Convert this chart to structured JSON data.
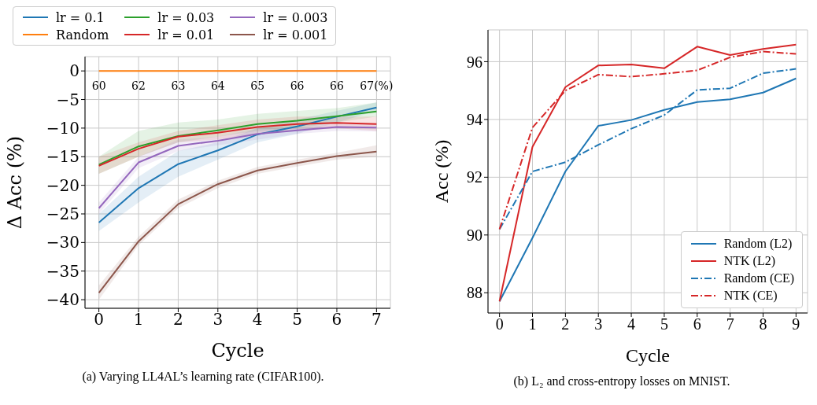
{
  "chart_data": [
    {
      "type": "line",
      "xlabel": "Cycle",
      "ylabel": "Δ Acc (%)",
      "x": [
        0,
        1,
        2,
        3,
        4,
        5,
        6,
        7
      ],
      "xlim": [
        -0.35,
        7.35
      ],
      "xticks": [
        0,
        1,
        2,
        3,
        4,
        5,
        6,
        7
      ],
      "ylim": [
        -41.5,
        2.5
      ],
      "yticks": [
        0,
        -5,
        -10,
        -15,
        -20,
        -25,
        -30,
        -35,
        -40
      ],
      "grid": true,
      "legend": "top",
      "line_style": "solid",
      "series": [
        {
          "name": "lr = 0.1",
          "color": "#1f77b4",
          "values": [
            -26.5,
            -20.5,
            -16.3,
            -13.9,
            -11.1,
            -9.7,
            -8.0,
            -6.4
          ],
          "lower": [
            -28,
            -23,
            -18.5,
            -15.5,
            -12.5,
            -11,
            -9,
            -7
          ],
          "upper": [
            -25,
            -18.5,
            -14,
            -12.5,
            -10,
            -8.5,
            -7,
            -5.5
          ]
        },
        {
          "name": "Random",
          "color": "#ff7f0e",
          "values": [
            0,
            0,
            0,
            0,
            0,
            0,
            0,
            0
          ]
        },
        {
          "name": "lr = 0.03",
          "color": "#2ca02c",
          "values": [
            -16.4,
            -13.2,
            -11.4,
            -10.4,
            -9.3,
            -8.7,
            -7.9,
            -7.1
          ],
          "lower": [
            -18,
            -15,
            -12.5,
            -11.5,
            -10.5,
            -10,
            -9,
            -8
          ],
          "upper": [
            -15,
            -10.5,
            -9,
            -8.5,
            -7.5,
            -7,
            -6.5,
            -5.5
          ]
        },
        {
          "name": "lr = 0.01",
          "color": "#d62728",
          "values": [
            -16.6,
            -13.6,
            -11.5,
            -10.8,
            -9.8,
            -9.3,
            -9.1,
            -9.3
          ],
          "lower": [
            -18,
            -15,
            -12.5,
            -12,
            -11,
            -10.5,
            -10,
            -10.5
          ],
          "upper": [
            -15,
            -12.5,
            -10.5,
            -9.5,
            -8.5,
            -8,
            -8,
            -8
          ]
        },
        {
          "name": "lr = 0.003",
          "color": "#9467bd",
          "values": [
            -24.0,
            -16.0,
            -13.1,
            -12.2,
            -11.0,
            -10.4,
            -9.8,
            -9.9
          ],
          "lower": [
            -25,
            -17,
            -14,
            -13,
            -12,
            -11,
            -10.5,
            -10.6
          ],
          "upper": [
            -23,
            -15,
            -12,
            -11.5,
            -10,
            -10,
            -9.3,
            -9.3
          ]
        },
        {
          "name": "lr = 0.001",
          "color": "#8c564b",
          "values": [
            -38.8,
            -29.8,
            -23.3,
            -19.8,
            -17.4,
            -16.1,
            -14.9,
            -14.1
          ],
          "lower": [
            -40,
            -30.5,
            -24,
            -20.5,
            -18,
            -16.7,
            -15.5,
            -15
          ],
          "upper": [
            -37.5,
            -29,
            -22.5,
            -19.2,
            -16.8,
            -15.5,
            -14.3,
            -13
          ]
        }
      ],
      "annotations": [
        {
          "text": "60",
          "x": 0,
          "y": 0
        },
        {
          "text": "62",
          "x": 1,
          "y": 0
        },
        {
          "text": "63",
          "x": 2,
          "y": 0
        },
        {
          "text": "64",
          "x": 3,
          "y": 0
        },
        {
          "text": "65",
          "x": 4,
          "y": 0
        },
        {
          "text": "66",
          "x": 5,
          "y": 0
        },
        {
          "text": "66",
          "x": 6,
          "y": 0
        },
        {
          "text": "67(%)",
          "x": 7,
          "y": 0
        },
        "(a) Varying LL4AL’s learning rate (CIFAR100)."
      ]
    },
    {
      "type": "line",
      "xlabel": "Cycle",
      "ylabel": "Acc (%)",
      "x": [
        0,
        1,
        2,
        3,
        4,
        5,
        6,
        7,
        8,
        9
      ],
      "xlim": [
        -0.35,
        9.35
      ],
      "xticks": [
        0,
        1,
        2,
        3,
        4,
        5,
        6,
        7,
        8,
        9
      ],
      "ylim": [
        87.3,
        97.1
      ],
      "yticks": [
        88,
        90,
        92,
        94,
        96
      ],
      "grid": true,
      "legend": "bottom right",
      "series": [
        {
          "name": "Random (L2)",
          "color": "#1f77b4",
          "line_style": "solid",
          "values": [
            87.7,
            89.9,
            92.2,
            93.78,
            93.98,
            94.33,
            94.6,
            94.7,
            94.93,
            95.42
          ]
        },
        {
          "name": "NTK (L2)",
          "color": "#d62728",
          "line_style": "solid",
          "values": [
            87.7,
            93.05,
            95.12,
            95.87,
            95.9,
            95.77,
            96.52,
            96.23,
            96.44,
            96.59
          ]
        },
        {
          "name": "Random (CE)",
          "color": "#1f77b4",
          "line_style": "dashdot",
          "values": [
            90.2,
            92.2,
            92.52,
            93.12,
            93.68,
            94.15,
            95.02,
            95.08,
            95.6,
            95.75
          ]
        },
        {
          "name": "NTK (CE)",
          "color": "#d62728",
          "line_style": "dashdot",
          "values": [
            90.2,
            93.72,
            95.0,
            95.55,
            95.48,
            95.58,
            95.7,
            96.15,
            96.35,
            96.27
          ]
        }
      ],
      "annotations": [
        "(b) L₂ and cross-entropy losses on MNIST."
      ]
    }
  ]
}
